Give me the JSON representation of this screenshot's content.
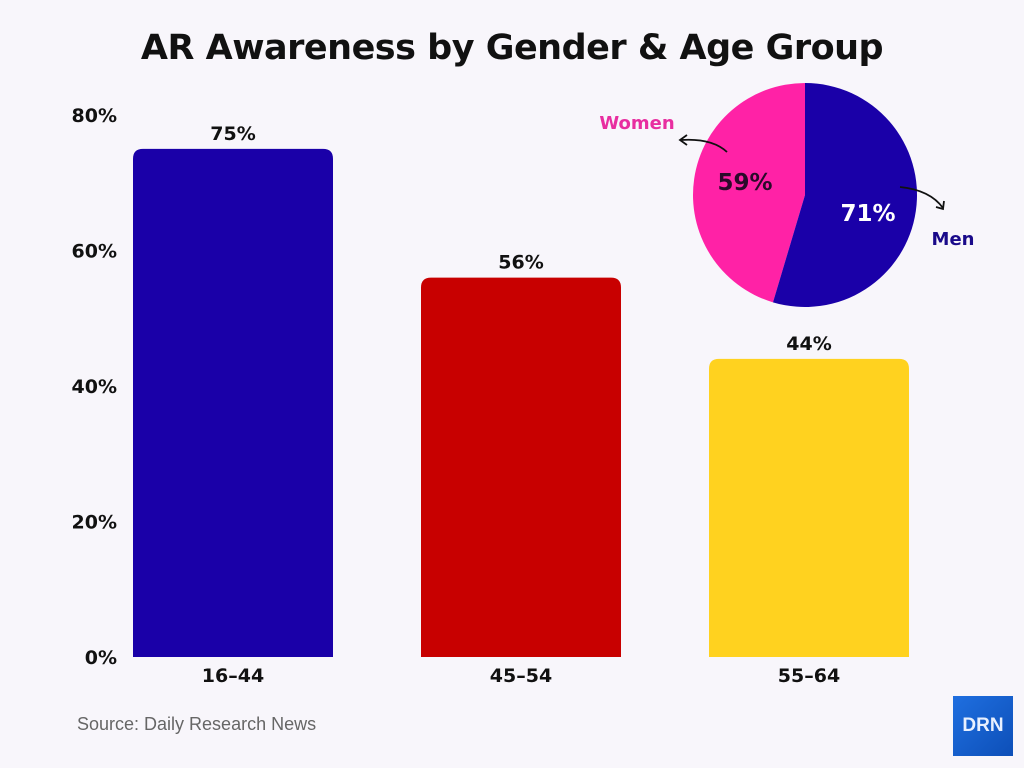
{
  "chart_data": [
    {
      "type": "bar",
      "title": "AR Awareness by Gender & Age Group",
      "categories": [
        "16–44",
        "45–54",
        "55–64"
      ],
      "values": [
        75,
        56,
        44
      ],
      "data_labels": [
        "75%",
        "56%",
        "44%"
      ],
      "colors": [
        "#1a00a8",
        "#c80000",
        "#ffd21f"
      ],
      "ylim": [
        0,
        80
      ],
      "yticks": [
        0,
        20,
        40,
        60,
        80
      ],
      "ytick_labels": [
        "0%",
        "20%",
        "40%",
        "60%",
        "80%"
      ],
      "grid": false
    },
    {
      "type": "pie",
      "labels": [
        "Women",
        "Men"
      ],
      "values": [
        59,
        71
      ],
      "data_labels": [
        "59%",
        "71%"
      ],
      "colors": [
        "#ff22a6",
        "#1a00a8"
      ],
      "label_colors": [
        "#e82ea0",
        "#1a0a8a"
      ]
    }
  ],
  "title": "AR Awareness by Gender & Age Group",
  "source": "Source: Daily Research News",
  "logo_text": "DRN"
}
